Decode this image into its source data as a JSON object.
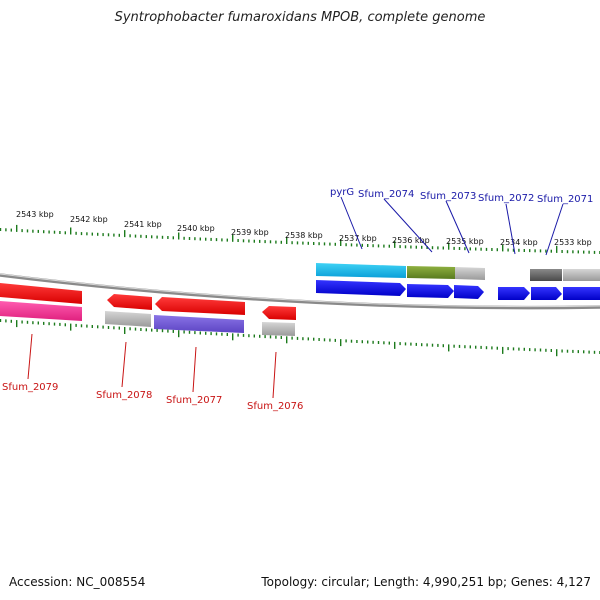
{
  "title": "Syntrophobacter fumaroxidans MPOB, complete genome",
  "accession": "Accession: NC_008554",
  "topology": "Topology: circular; Length: 4,990,251 bp; Genes: 4,127",
  "colors": {
    "forward_cds": "#0a0ae6",
    "reverse_cds": "#ee0a0a",
    "tick_green": "#1c7a1c",
    "backbone": "#8a8a8a",
    "label_top": "#1a1aa8",
    "label_bottom": "#c81414"
  },
  "kbp_labels": [
    "2543 kbp",
    "2542 kbp",
    "2541 kbp",
    "2540 kbp",
    "2539 kbp",
    "2538 kbp",
    "2537 kbp",
    "2536 kbp",
    "2535 kbp",
    "2534 kbp",
    "2533 kbp"
  ],
  "top_gene_labels": [
    "pyrG",
    "Sfum_2074",
    "Sfum_2073",
    "Sfum_2072",
    "Sfum_2071"
  ],
  "bottom_gene_labels": [
    "Sfum_2079",
    "Sfum_2078",
    "Sfum_2077",
    "Sfum_2076"
  ]
}
